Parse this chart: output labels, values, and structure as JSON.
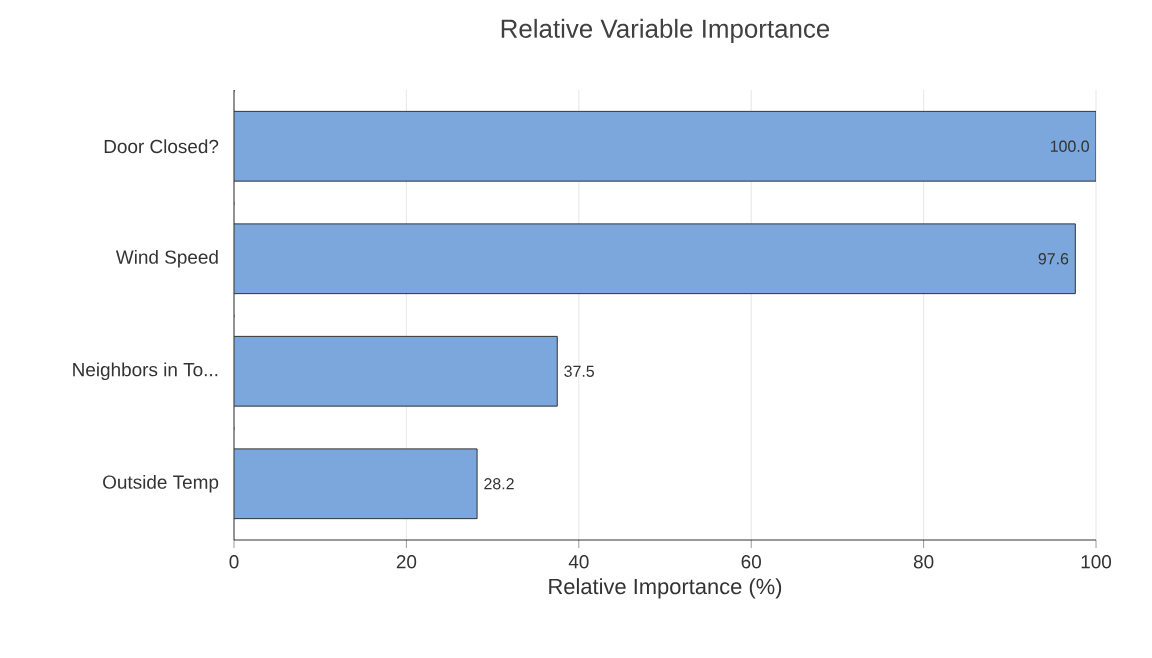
{
  "chart_data": {
    "type": "bar",
    "orientation": "horizontal",
    "title": "Relative Variable Importance",
    "xlabel": "Relative Importance (%)",
    "categories": [
      "Door Closed?",
      "Wind Speed",
      "Neighbors in To...",
      "Outside Temp"
    ],
    "values": [
      100.0,
      97.6,
      37.5,
      28.2
    ],
    "value_labels": [
      "100.0",
      "97.6",
      "37.5",
      "28.2"
    ],
    "color": "#7ba7dc",
    "xlim": [
      0,
      100
    ],
    "xticks": [
      0,
      20,
      40,
      60,
      80,
      100
    ],
    "grid": "x"
  }
}
